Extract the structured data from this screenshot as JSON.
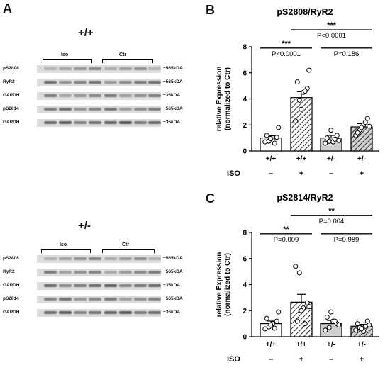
{
  "panels": {
    "a_letter": "A",
    "b_letter": "B",
    "c_letter": "C"
  },
  "blots": [
    {
      "genotype": "+/+",
      "groups": [
        "Iso",
        "Ctr"
      ],
      "rows": [
        {
          "label": "pS2808",
          "size": "~565kDA",
          "intensity": 0.42
        },
        {
          "label": "RyR2",
          "size": "~565kDA",
          "intensity": 0.62
        },
        {
          "label": "GAPDH",
          "size": "~35kDA",
          "intensity": 0.55
        },
        {
          "label": "pS2814",
          "size": "~565kDA",
          "intensity": 0.58
        },
        {
          "label": "GAPDH",
          "size": "~35kDA",
          "intensity": 0.75
        }
      ]
    },
    {
      "genotype": "+/-",
      "groups": [
        "Iso",
        "Ctr"
      ],
      "rows": [
        {
          "label": "pS2808",
          "size": "~565kDA",
          "intensity": 0.45
        },
        {
          "label": "RyR2",
          "size": "~565kDA",
          "intensity": 0.5
        },
        {
          "label": "GAPDH",
          "size": "~35kDA",
          "intensity": 0.7
        },
        {
          "label": "pS2814",
          "size": "~565kDA",
          "intensity": 0.55
        },
        {
          "label": "GAPDH",
          "size": "~35kDA",
          "intensity": 0.75
        }
      ]
    }
  ],
  "chart_data": [
    {
      "type": "bar",
      "title": "pS2808/RyR2",
      "ylabel": "relative Expression\n(normalized to Ctr)",
      "ylim": [
        0,
        8
      ],
      "yticks": [
        "0",
        "2",
        "4",
        "6",
        "8"
      ],
      "categories": [
        "+/+",
        "+/+",
        "+/-",
        "+/-"
      ],
      "iso_row_label": "ISO",
      "iso_marks": [
        "–",
        "+",
        "–",
        "+"
      ],
      "values": [
        1.0,
        4.1,
        1.0,
        1.85
      ],
      "errors": [
        0.18,
        0.45,
        0.2,
        0.25
      ],
      "fills": [
        "white",
        "hatch",
        "gray",
        "hatch-gray"
      ],
      "points": [
        [
          0.7,
          0.75,
          1.0,
          1.05,
          1.2,
          0.95,
          0.6,
          1.8
        ],
        [
          2.3,
          3.9,
          4.5,
          4.8,
          5.3,
          3.2,
          4.6,
          6.2
        ],
        [
          0.6,
          0.75,
          0.7,
          1.2,
          1.0,
          1.6,
          0.9,
          0.8
        ],
        [
          1.2,
          1.6,
          2.0,
          2.5,
          1.4,
          1.8,
          2.2,
          1.9
        ]
      ],
      "annotations": [
        {
          "stars": "***",
          "p": "P<0.0001",
          "from": 0,
          "to": 1,
          "y": 7.9
        },
        {
          "stars": "***",
          "p": "P<0.0001",
          "from": 1,
          "to": 3,
          "y": 9.3
        },
        {
          "stars": "",
          "p": "P=0.186",
          "from": 2,
          "to": 3,
          "y": 7.9
        }
      ]
    },
    {
      "type": "bar",
      "title": "pS2814/RyR2",
      "ylabel": "relative Expression\n(normalized to Ctr)",
      "ylim": [
        0,
        8
      ],
      "yticks": [
        "0",
        "2",
        "4",
        "6",
        "8"
      ],
      "categories": [
        "+/+",
        "+/+",
        "+/-",
        "+/-"
      ],
      "iso_row_label": "ISO",
      "iso_marks": [
        "–",
        "+",
        "–",
        "+"
      ],
      "values": [
        1.0,
        2.65,
        1.0,
        0.8
      ],
      "errors": [
        0.2,
        0.6,
        0.25,
        0.15
      ],
      "fills": [
        "white",
        "hatch",
        "gray",
        "hatch-gray"
      ],
      "points": [
        [
          0.6,
          0.75,
          1.0,
          1.2,
          1.4,
          0.9,
          0.65,
          1.9
        ],
        [
          5.4,
          4.9,
          2.2,
          2.6,
          1.2,
          2.0,
          1.0,
          2.3
        ],
        [
          0.5,
          0.7,
          1.2,
          1.0,
          1.5,
          1.9,
          1.2,
          0.9
        ],
        [
          0.5,
          0.7,
          0.4,
          1.2,
          1.0,
          0.6,
          0.8,
          0.9
        ]
      ],
      "annotations": [
        {
          "stars": "**",
          "p": "P=0.009",
          "from": 0,
          "to": 1,
          "y": 7.9
        },
        {
          "stars": "**",
          "p": "P=0.004",
          "from": 1,
          "to": 3,
          "y": 9.3
        },
        {
          "stars": "",
          "p": "P=0.989",
          "from": 2,
          "to": 3,
          "y": 7.9
        }
      ]
    }
  ]
}
